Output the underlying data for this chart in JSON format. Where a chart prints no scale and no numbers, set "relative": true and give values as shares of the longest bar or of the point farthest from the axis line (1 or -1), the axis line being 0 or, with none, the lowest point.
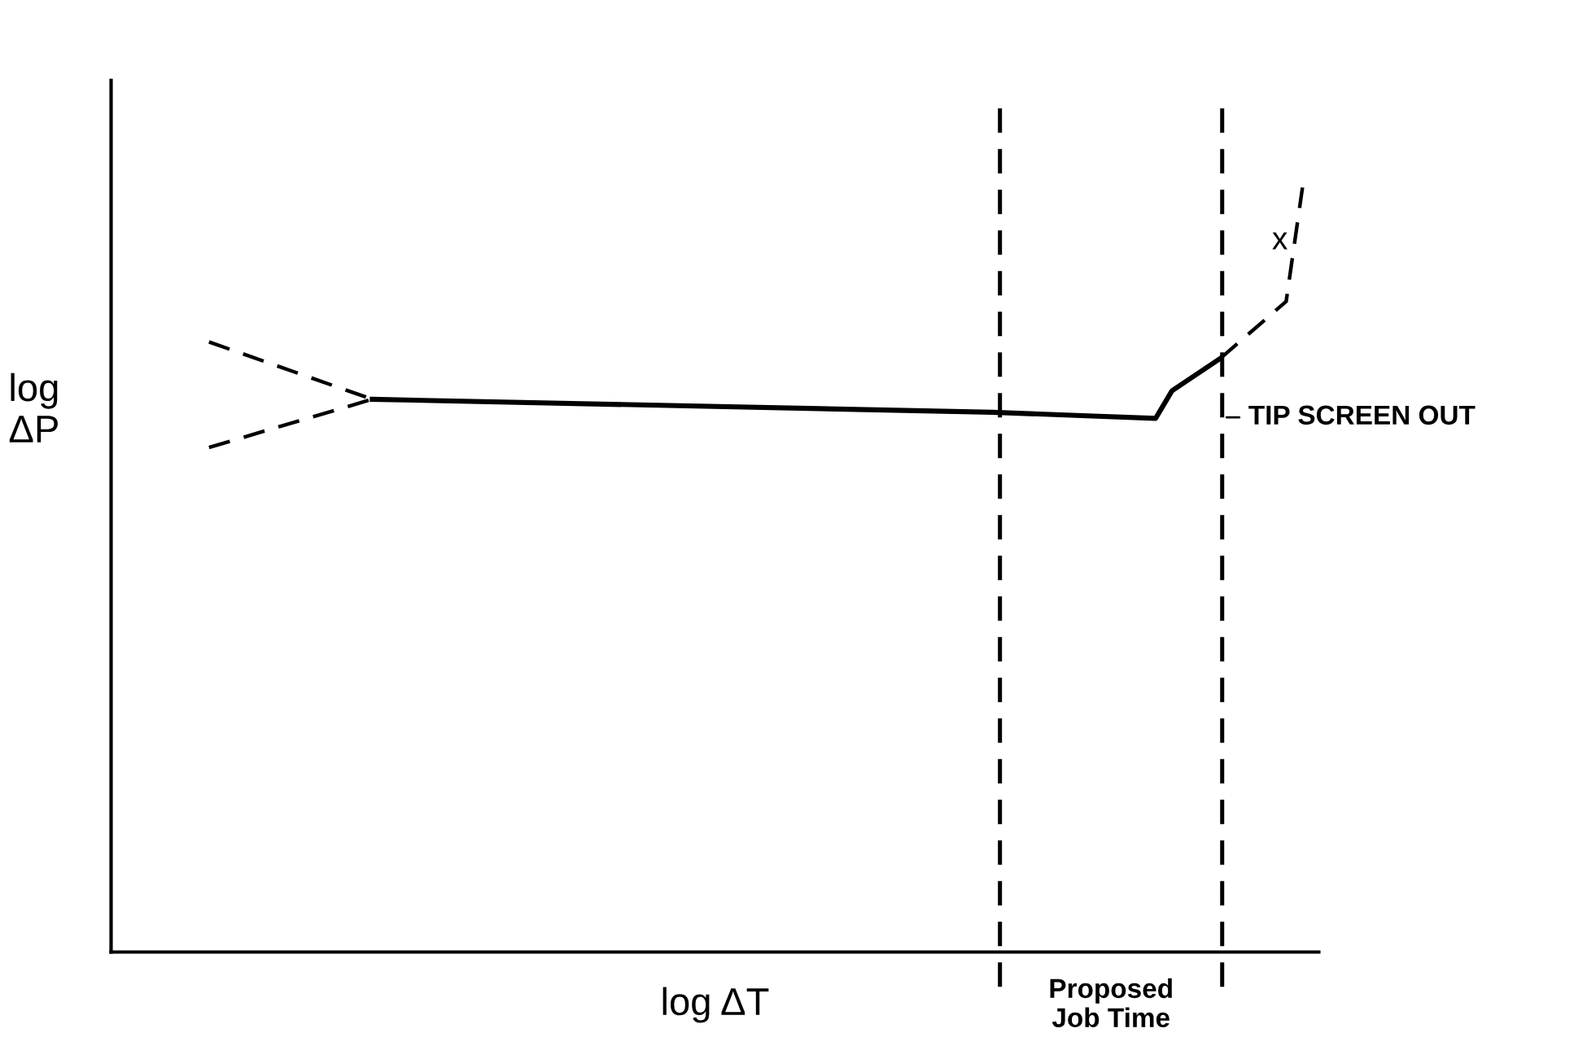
{
  "chart_data": {
    "type": "line",
    "relative": true,
    "xlabel": "log ΔT",
    "ylabel": "log\nΔP",
    "categories": [
      null,
      null,
      null,
      null,
      null,
      null,
      null,
      null,
      null,
      null,
      null,
      null,
      null,
      null,
      null,
      null,
      null,
      null,
      null,
      null,
      null,
      null,
      null,
      null,
      null,
      null,
      null,
      null,
      null,
      null,
      null,
      null,
      null,
      null,
      null,
      null,
      null,
      null,
      null,
      null,
      null,
      null,
      null,
      null,
      null,
      null,
      null,
      null,
      null,
      null,
      null,
      null,
      null,
      null,
      null,
      null,
      null,
      null,
      null,
      null,
      null,
      null,
      null,
      null,
      null,
      null,
      null,
      null,
      null,
      null,
      null,
      null,
      null,
      null,
      null
    ],
    "series": [
      {
        "color": "#000000",
        "line_style": "solid",
        "values": [
          null,
          null,
          null,
          null,
          null,
          null,
          null,
          null,
          null,
          null,
          null,
          null,
          null,
          null,
          null,
          null,
          0.723,
          null,
          null,
          null,
          null,
          null,
          null,
          null,
          null,
          null,
          null,
          null,
          null,
          null,
          null,
          null,
          null,
          null,
          null,
          null,
          null,
          null,
          null,
          null,
          null,
          null,
          null,
          null,
          null,
          null,
          null,
          null,
          null,
          null,
          null,
          null,
          null,
          null,
          0.706,
          null,
          null,
          null,
          null,
          null,
          null,
          null,
          null,
          null,
          0.698,
          0.734,
          null,
          null,
          0.777,
          null,
          null,
          null,
          null,
          null,
          null
        ]
      },
      {
        "color": "#000000",
        "line_style": "dashed",
        "values": [
          null,
          null,
          null,
          null,
          null,
          null,
          0.798,
          null,
          null,
          null,
          null,
          null,
          null,
          null,
          null,
          null,
          0.723,
          null,
          null,
          null,
          null,
          null,
          null,
          null,
          null,
          null,
          null,
          null,
          null,
          null,
          null,
          null,
          null,
          null,
          null,
          null,
          null,
          null,
          null,
          null,
          null,
          null,
          null,
          null,
          null,
          null,
          null,
          null,
          null,
          null,
          null,
          null,
          null,
          null,
          null,
          null,
          null,
          null,
          null,
          null,
          null,
          null,
          null,
          null,
          null,
          null,
          null,
          null,
          null,
          null,
          null,
          null,
          null,
          null,
          null
        ]
      },
      {
        "color": "#000000",
        "line_style": "dashed",
        "values": [
          null,
          null,
          null,
          null,
          null,
          null,
          0.66,
          null,
          null,
          null,
          null,
          null,
          null,
          null,
          null,
          null,
          0.723,
          null,
          null,
          null,
          null,
          null,
          null,
          null,
          null,
          null,
          null,
          null,
          null,
          null,
          null,
          null,
          null,
          null,
          null,
          null,
          null,
          null,
          null,
          null,
          null,
          null,
          null,
          null,
          null,
          null,
          null,
          null,
          null,
          null,
          null,
          null,
          null,
          null,
          null,
          null,
          null,
          null,
          null,
          null,
          null,
          null,
          null,
          null,
          null,
          null,
          null,
          null,
          null,
          null,
          null,
          null,
          null,
          null,
          null
        ]
      },
      {
        "color": "#000000",
        "line_style": "dashed",
        "values": [
          null,
          null,
          null,
          null,
          null,
          null,
          null,
          null,
          null,
          null,
          null,
          null,
          null,
          null,
          null,
          null,
          null,
          null,
          null,
          null,
          null,
          null,
          null,
          null,
          null,
          null,
          null,
          null,
          null,
          null,
          null,
          null,
          null,
          null,
          null,
          null,
          null,
          null,
          null,
          null,
          null,
          null,
          null,
          null,
          null,
          null,
          null,
          null,
          null,
          null,
          null,
          null,
          null,
          null,
          null,
          null,
          null,
          null,
          null,
          null,
          null,
          null,
          null,
          null,
          null,
          null,
          null,
          null,
          0.777,
          null,
          null,
          null,
          0.851,
          1,
          null
        ]
      }
    ],
    "annotations": [
      "TIP SCREEN OUT",
      "x",
      "Proposed\nJob Time"
    ]
  }
}
